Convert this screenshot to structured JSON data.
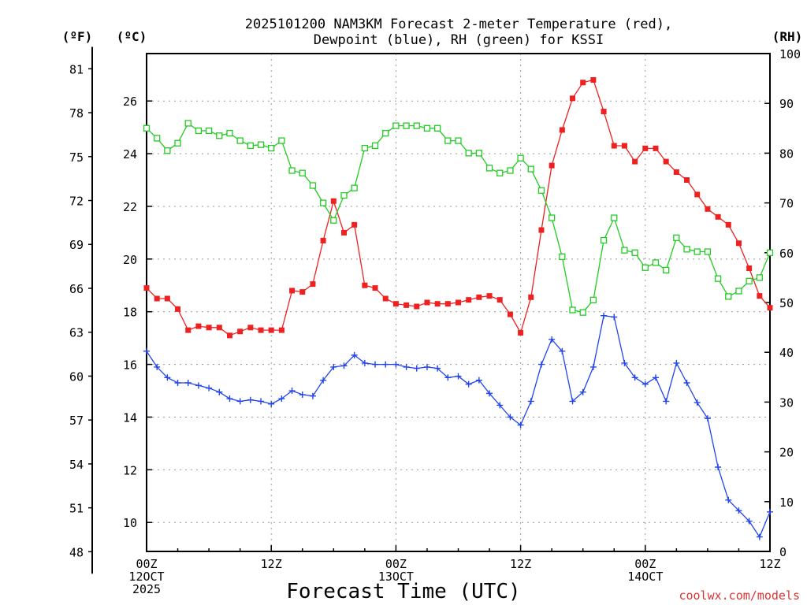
{
  "chart_data": {
    "type": "line",
    "title_line1": "2025101200 NAM3KM Forecast 2-meter Temperature (red),",
    "title_line2": "Dewpoint (blue), RH (green) for KSSI",
    "xlabel": "Forecast Time (UTC)",
    "credit": "coolwx.com/models",
    "left_units": "(ºF)",
    "left2_units": "(ºC)",
    "right_units": "(RH)",
    "ylim_c": [
      8.9,
      27.8
    ],
    "ylim_rh": [
      0,
      100
    ],
    "xlim_h": [
      0,
      60
    ],
    "f_ticks": [
      "81",
      "78",
      "75",
      "72",
      "69",
      "66",
      "63",
      "60",
      "57",
      "54",
      "51",
      "48"
    ],
    "c_ticks": [
      "26",
      "24",
      "22",
      "20",
      "18",
      "16",
      "14",
      "12",
      "10"
    ],
    "rh_ticks": [
      "100",
      "90",
      "80",
      "70",
      "60",
      "50",
      "40",
      "30",
      "20",
      "10",
      "0"
    ],
    "x_ticks": [
      {
        "h": 0,
        "lines": [
          "00Z",
          "12OCT",
          "2025"
        ]
      },
      {
        "h": 12,
        "lines": [
          "12Z"
        ]
      },
      {
        "h": 24,
        "lines": [
          "00Z",
          "13OCT"
        ]
      },
      {
        "h": 36,
        "lines": [
          "12Z"
        ]
      },
      {
        "h": 48,
        "lines": [
          "00Z",
          "14OCT"
        ]
      },
      {
        "h": 60,
        "lines": [
          "12Z"
        ]
      }
    ],
    "series": [
      {
        "name": "Temperature",
        "units": "°C",
        "color": "#ee2020",
        "marker": "filled-square",
        "values": [
          18.9,
          18.5,
          18.5,
          18.1,
          17.3,
          17.45,
          17.4,
          17.4,
          17.1,
          17.25,
          17.4,
          17.3,
          17.3,
          17.3,
          18.8,
          18.75,
          19.05,
          20.7,
          22.2,
          21.0,
          21.3,
          19.0,
          18.9,
          18.5,
          18.3,
          18.25,
          18.2,
          18.35,
          18.3,
          18.3,
          18.35,
          18.45,
          18.55,
          18.6,
          18.45,
          17.9,
          17.2,
          18.55,
          21.1,
          23.55,
          24.9,
          26.1,
          26.7,
          26.8,
          25.6,
          24.3,
          24.3,
          23.7,
          24.2,
          24.2,
          23.7,
          23.3,
          23.0,
          22.45,
          21.9,
          21.6,
          21.3,
          20.6,
          19.65,
          18.6,
          18.15
        ]
      },
      {
        "name": "Dewpoint",
        "units": "°C",
        "color": "#2244ee",
        "marker": "plus",
        "values": [
          16.5,
          15.9,
          15.5,
          15.3,
          15.3,
          15.2,
          15.1,
          14.95,
          14.7,
          14.6,
          14.65,
          14.6,
          14.5,
          14.7,
          15.0,
          14.85,
          14.8,
          15.4,
          15.9,
          15.95,
          16.35,
          16.05,
          16.0,
          16.0,
          16.0,
          15.9,
          15.85,
          15.9,
          15.85,
          15.5,
          15.55,
          15.25,
          15.4,
          14.9,
          14.45,
          14.0,
          13.7,
          14.6,
          16.0,
          16.95,
          16.5,
          14.6,
          14.95,
          15.9,
          17.85,
          17.8,
          16.05,
          15.5,
          15.25,
          15.5,
          14.6,
          16.05,
          15.3,
          14.55,
          13.95,
          12.1,
          10.85,
          10.45,
          10.05,
          9.45,
          10.4
        ]
      },
      {
        "name": "RH",
        "units": "%",
        "color": "#22cc22",
        "marker": "open-square",
        "values": [
          85,
          83,
          80.5,
          82,
          86,
          84.5,
          84.5,
          83.5,
          84,
          82.5,
          81.5,
          81.7,
          81,
          82.5,
          76.5,
          76,
          73.5,
          70,
          66.5,
          71.5,
          73,
          81,
          81.5,
          84,
          85.5,
          85.5,
          85.5,
          85,
          85,
          82.5,
          82.5,
          80,
          80,
          77,
          76,
          76.5,
          79,
          76.8,
          72.5,
          67,
          59.2,
          48.5,
          48,
          50.5,
          62.5,
          67,
          60.5,
          60,
          57,
          58,
          56.5,
          63,
          60.7,
          60.2,
          60.2,
          54.8,
          51.2,
          52.3,
          54.3,
          55,
          60
        ]
      }
    ]
  }
}
